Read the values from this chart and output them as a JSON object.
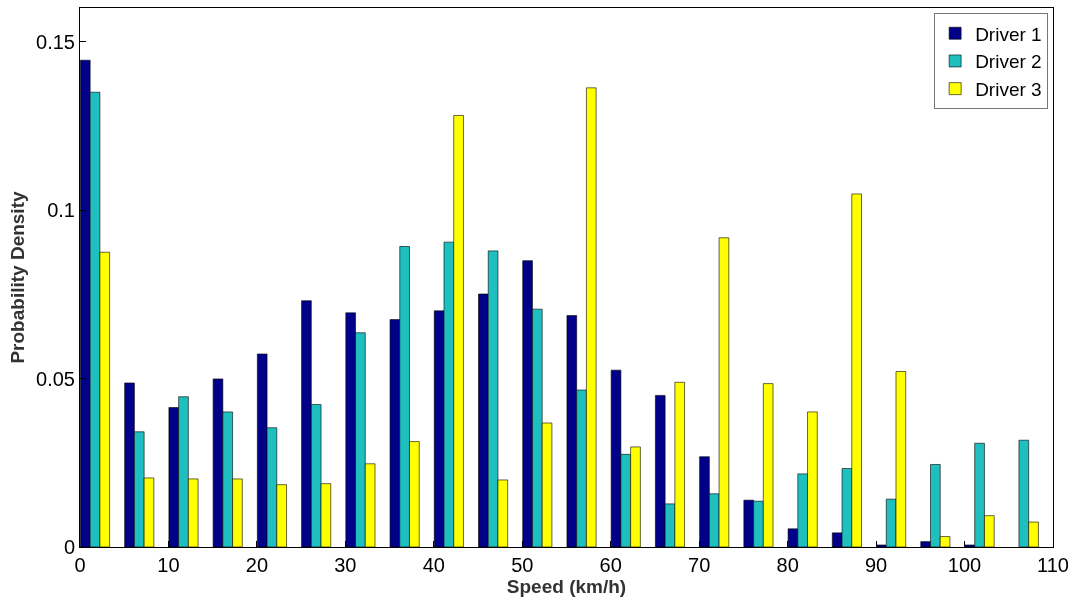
{
  "chart_data": {
    "type": "bar",
    "xlabel": "Speed (km/h)",
    "ylabel": "Probability Density",
    "x": [
      1.7,
      6.7,
      11.7,
      16.7,
      21.7,
      26.7,
      31.7,
      36.7,
      41.7,
      46.7,
      51.7,
      56.7,
      61.7,
      66.7,
      71.7,
      76.7,
      81.7,
      86.7,
      91.7,
      96.7,
      101.7,
      106.7
    ],
    "series": [
      {
        "name": "Driver 1",
        "color": "#000088",
        "values": [
          0.1445,
          0.0487,
          0.0414,
          0.0499,
          0.0573,
          0.0731,
          0.0695,
          0.0675,
          0.0701,
          0.0751,
          0.085,
          0.0687,
          0.0525,
          0.045,
          0.0268,
          0.0139,
          0.0054,
          0.0042,
          0.0006,
          0.0016,
          0.0006,
          null
        ]
      },
      {
        "name": "Driver 2",
        "color": "#1fbfbf",
        "values": [
          0.135,
          0.0342,
          0.0446,
          0.0401,
          0.0354,
          0.0423,
          0.0636,
          0.0892,
          0.0905,
          0.0879,
          0.0706,
          0.0466,
          0.0275,
          0.0128,
          0.0158,
          0.0136,
          0.0217,
          0.0233,
          0.0142,
          0.0245,
          0.0308,
          0.0317
        ]
      },
      {
        "name": "Driver 3",
        "color": "#ffff00",
        "values": [
          0.0875,
          0.0205,
          0.0202,
          0.0202,
          0.0185,
          0.0188,
          0.0247,
          0.0313,
          0.1281,
          0.0199,
          0.0368,
          0.1363,
          0.0297,
          0.0489,
          0.0918,
          0.0485,
          0.0401,
          0.1048,
          0.0521,
          0.0031,
          0.0093,
          0.0074
        ]
      }
    ],
    "xlim": [
      0,
      110
    ],
    "xticks": [
      0,
      10,
      20,
      30,
      40,
      50,
      60,
      70,
      80,
      90,
      100,
      110
    ],
    "ylim": [
      0,
      0.16
    ],
    "yticks": [
      0,
      0.05,
      0.1,
      0.15
    ],
    "legend": "top right"
  }
}
